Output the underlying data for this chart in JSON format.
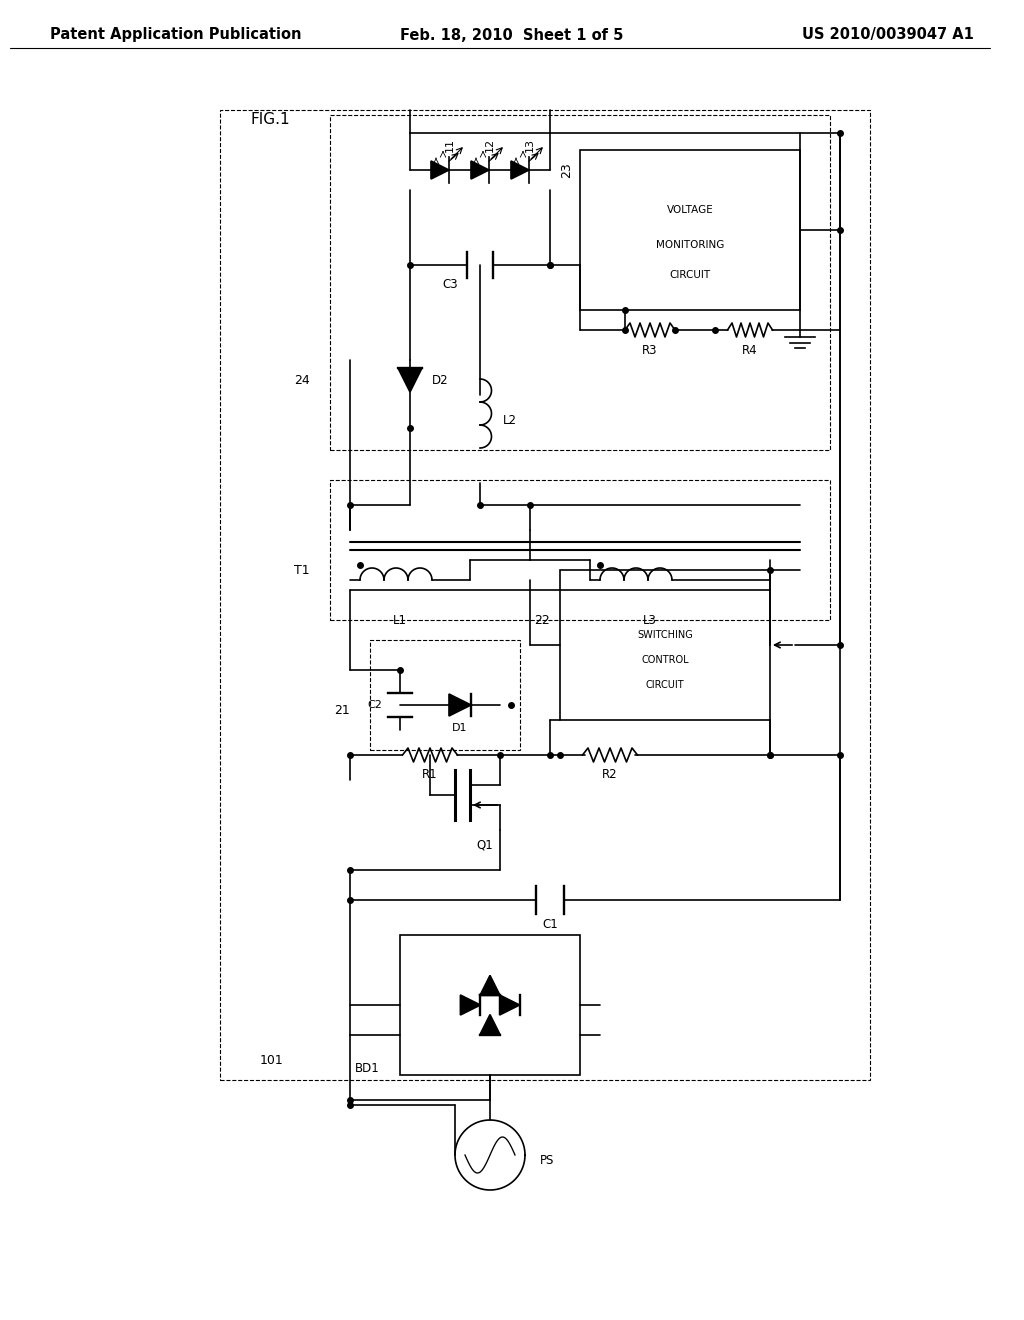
{
  "bg_color": "#ffffff",
  "header_left": "Patent Application Publication",
  "header_center": "Feb. 18, 2010  Sheet 1 of 5",
  "header_right": "US 2010/0039047 A1",
  "fig_label": "FIG.1",
  "title_fontsize": 11,
  "header_fontsize": 10.5
}
